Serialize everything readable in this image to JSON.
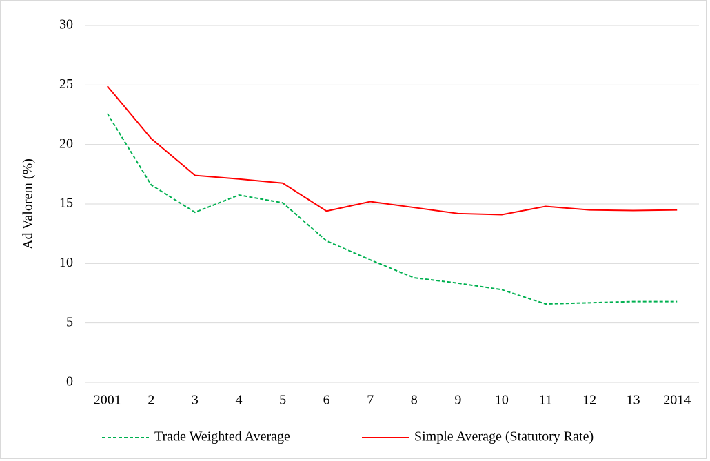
{
  "chart_data": {
    "type": "line",
    "ylabel": "Ad Valorem (%)",
    "categories": [
      "2001",
      "2",
      "3",
      "4",
      "5",
      "6",
      "7",
      "8",
      "9",
      "10",
      "11",
      "12",
      "13",
      "2014"
    ],
    "series": [
      {
        "name": "Trade Weighted Average",
        "color": "#00b050",
        "style": "dashed",
        "values": [
          22.6,
          16.6,
          14.3,
          15.75,
          15.1,
          11.9,
          10.3,
          8.8,
          8.35,
          7.8,
          6.6,
          6.7,
          6.8,
          6.8
        ]
      },
      {
        "name": "Simple Average (Statutory Rate)",
        "color": "#ff0000",
        "style": "solid",
        "values": [
          24.9,
          20.5,
          17.4,
          17.1,
          16.75,
          14.4,
          15.2,
          14.7,
          14.2,
          14.1,
          14.8,
          14.5,
          14.45,
          14.5
        ]
      }
    ],
    "ylim": [
      0,
      30
    ],
    "yticks": [
      0,
      5,
      10,
      15,
      20,
      25,
      30
    ],
    "grid": true,
    "legend": "bottom"
  }
}
